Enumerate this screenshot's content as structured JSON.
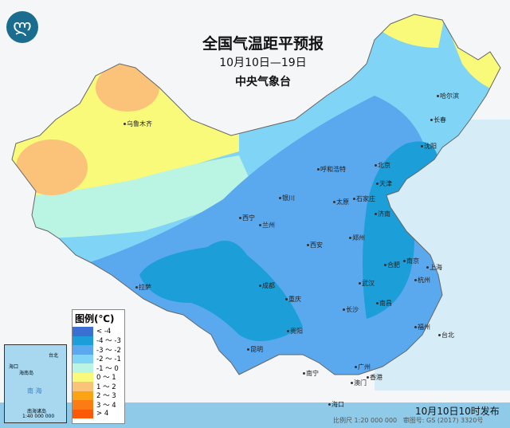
{
  "header": {
    "title": "全国气温距平预报",
    "period": "10月10日—19日",
    "issuer": "中央气象台",
    "logo_icon": "cma-logo-icon"
  },
  "legend": {
    "title": "图例(℃)",
    "items": [
      {
        "label": "< -4",
        "color": "#3b6fd1"
      },
      {
        "label": "-4 ～ -3",
        "color": "#1c9ed8"
      },
      {
        "label": "-3 ～ -2",
        "color": "#5aa8ee"
      },
      {
        "label": "-2 ～ -1",
        "color": "#80d4f6"
      },
      {
        "label": "-1 ～ 0",
        "color": "#b9f5e2"
      },
      {
        "label": "0 ～ 1",
        "color": "#f9f97a"
      },
      {
        "label": "1 ～ 2",
        "color": "#fbc27a"
      },
      {
        "label": "2 ～ 3",
        "color": "#fba312"
      },
      {
        "label": "3 ～ 4",
        "color": "#fb7c12"
      },
      {
        "label": "> 4",
        "color": "#fb5808"
      }
    ]
  },
  "cities": [
    "乌鲁木齐",
    "哈尔滨",
    "长春",
    "沈阳",
    "呼和浩特",
    "北京",
    "天津",
    "石家庄",
    "太原",
    "银川",
    "西宁",
    "兰州",
    "济南",
    "郑州",
    "西安",
    "合肥",
    "南京",
    "上海",
    "杭州",
    "武汉",
    "成都",
    "重庆",
    "拉萨",
    "长沙",
    "南昌",
    "贵阳",
    "昆明",
    "福州",
    "台北",
    "南宁",
    "广州",
    "香港",
    "澳门",
    "海口"
  ],
  "inset": {
    "label": "南海诸岛",
    "scale": "1:40 000 000",
    "sea": "南 海",
    "places": [
      "海口",
      "海南岛",
      "台北"
    ]
  },
  "footer": {
    "issued": "10月10日10时发布",
    "scale": "比例尺 1:20 000 000",
    "approval": "审图号: GS (2017) 3320号"
  }
}
